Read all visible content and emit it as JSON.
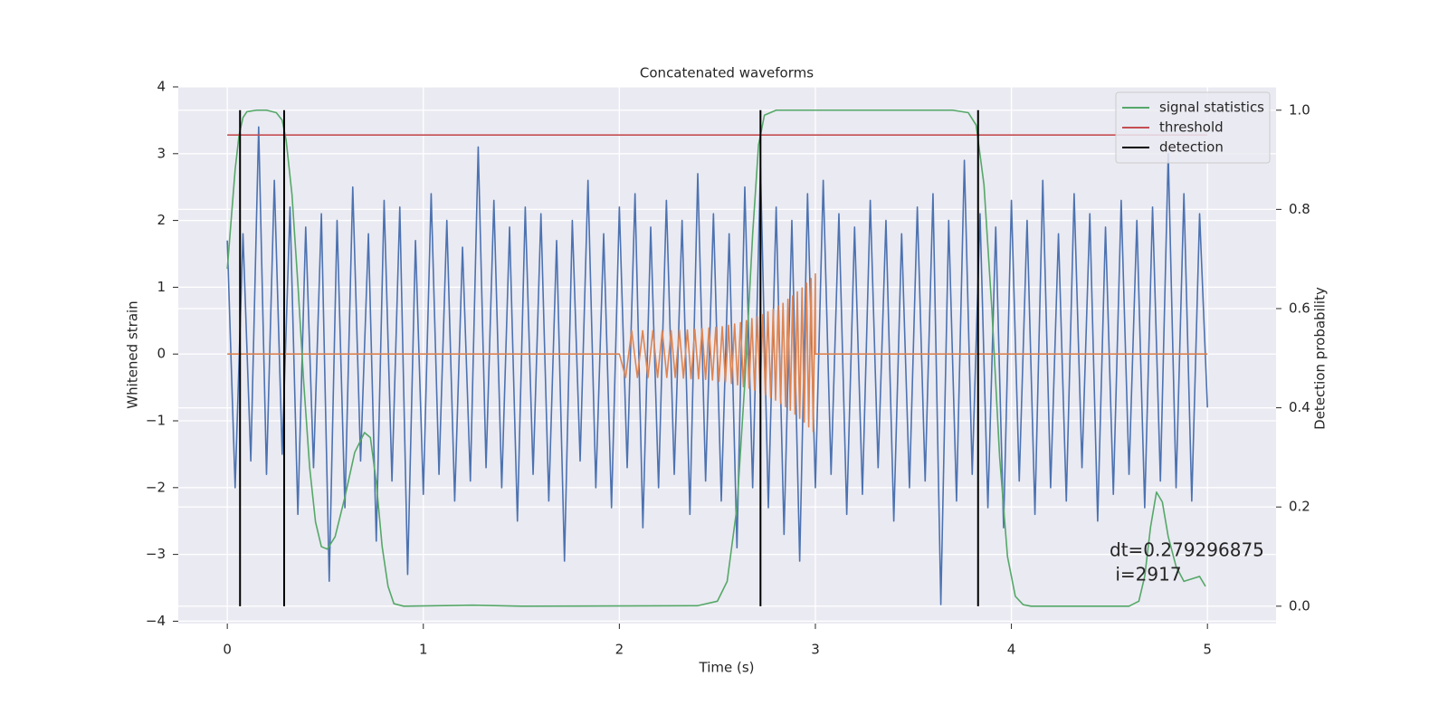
{
  "chart_data": {
    "type": "line",
    "title": "Concatenated waveforms",
    "xlabel": "Time (s)",
    "ylabel": "Whitened strain",
    "y2label": "Detection probability",
    "annotation": [
      "dt=0.279296875",
      " i=2917"
    ],
    "xlim": [
      -0.25,
      5.35
    ],
    "ylim": [
      -4.035,
      4.0
    ],
    "y2lim": [
      -0.035,
      1.047
    ],
    "xticks": [
      0,
      1,
      2,
      3,
      4,
      5
    ],
    "yticks": [
      {
        "value": -4,
        "label": "−4"
      },
      {
        "value": -3,
        "label": "−3"
      },
      {
        "value": -2,
        "label": "−2"
      },
      {
        "value": -1,
        "label": "−1"
      },
      0,
      1,
      2,
      3,
      4
    ],
    "y2ticks": [
      {
        "value": 0,
        "label": "0.0"
      },
      0.2,
      0.4,
      0.6,
      0.8,
      {
        "value": 1,
        "label": "1.0"
      }
    ],
    "grid": true,
    "legend": "upper right",
    "series": [
      {
        "type": "line",
        "color": "#4c72b0",
        "x": [
          0,
          0.04,
          0.08,
          0.12,
          0.16,
          0.2,
          0.24,
          0.28,
          0.32,
          0.36,
          0.4,
          0.44,
          0.48,
          0.52,
          0.56,
          0.6,
          0.64,
          0.68,
          0.72,
          0.76,
          0.8,
          0.84,
          0.88,
          0.92,
          0.96,
          1.0,
          1.04,
          1.08,
          1.12,
          1.16,
          1.2,
          1.24,
          1.28,
          1.32,
          1.36,
          1.4,
          1.44,
          1.48,
          1.52,
          1.56,
          1.6,
          1.64,
          1.68,
          1.72,
          1.76,
          1.8,
          1.84,
          1.88,
          1.92,
          1.96,
          2.0,
          2.04,
          2.08,
          2.12,
          2.16,
          2.2,
          2.24,
          2.28,
          2.32,
          2.36,
          2.4,
          2.44,
          2.48,
          2.52,
          2.56,
          2.6,
          2.64,
          2.68,
          2.72,
          2.76,
          2.8,
          2.84,
          2.88,
          2.92,
          2.96,
          3.0,
          3.04,
          3.08,
          3.12,
          3.16,
          3.2,
          3.24,
          3.28,
          3.32,
          3.36,
          3.4,
          3.44,
          3.48,
          3.52,
          3.56,
          3.6,
          3.64,
          3.68,
          3.72,
          3.76,
          3.8,
          3.84,
          3.88,
          3.92,
          3.96,
          4.0,
          4.04,
          4.08,
          4.12,
          4.16,
          4.2,
          4.24,
          4.28,
          4.32,
          4.36,
          4.4,
          4.44,
          4.48,
          4.52,
          4.56,
          4.6,
          4.64,
          4.68,
          4.72,
          4.76,
          4.8,
          4.84,
          4.88,
          4.92,
          4.96,
          5.0
        ],
        "values": [
          1.7,
          -2.0,
          1.8,
          -1.6,
          3.4,
          -1.8,
          2.6,
          -1.5,
          2.2,
          -2.4,
          1.9,
          -1.7,
          2.1,
          -3.4,
          2.0,
          -2.3,
          2.5,
          -1.6,
          1.8,
          -2.8,
          2.3,
          -1.9,
          2.2,
          -3.3,
          1.7,
          -2.1,
          2.4,
          -1.8,
          2.0,
          -2.2,
          1.6,
          -1.9,
          3.1,
          -1.7,
          2.3,
          -2.0,
          1.9,
          -2.5,
          2.2,
          -1.8,
          2.1,
          -2.2,
          1.7,
          -3.1,
          2.0,
          -1.6,
          2.6,
          -2.0,
          1.8,
          -2.3,
          2.2,
          -1.7,
          2.4,
          -2.6,
          1.9,
          -2.0,
          2.3,
          -1.8,
          2.0,
          -2.4,
          2.7,
          -1.9,
          2.1,
          -2.2,
          1.8,
          -2.9,
          2.5,
          -2.0,
          2.8,
          -2.3,
          2.2,
          -2.7,
          2.0,
          -3.1,
          2.4,
          -2.0,
          2.6,
          -1.8,
          2.1,
          -2.4,
          1.9,
          -2.1,
          2.3,
          -1.7,
          2.0,
          -2.5,
          1.8,
          -2.0,
          2.2,
          -1.9,
          2.4,
          -3.75,
          2.0,
          -2.2,
          2.9,
          -1.8,
          2.1,
          -2.3,
          1.9,
          -2.6,
          2.3,
          -1.9,
          2.0,
          -2.4,
          2.6,
          -2.0,
          1.8,
          -2.2,
          2.4,
          -1.7,
          2.1,
          -2.5,
          1.9,
          -2.1,
          2.3,
          -1.8,
          2.0,
          -2.3,
          2.2,
          -1.9,
          3.0,
          -2.0,
          2.4,
          -2.2,
          2.1,
          -0.8
        ]
      },
      {
        "type": "line",
        "color": "#dd8452",
        "x": [
          0,
          2,
          2.032,
          2.063,
          2.092,
          2.119,
          2.146,
          2.171,
          2.195,
          2.219,
          2.242,
          2.264,
          2.285,
          2.306,
          2.327,
          2.347,
          2.366,
          2.385,
          2.404,
          2.422,
          2.44,
          2.457,
          2.475,
          2.492,
          2.508,
          2.525,
          2.541,
          2.557,
          2.572,
          2.588,
          2.603,
          2.618,
          2.633,
          2.648,
          2.662,
          2.676,
          2.69,
          2.704,
          2.718,
          2.732,
          2.745,
          2.758,
          2.772,
          2.785,
          2.797,
          2.81,
          2.823,
          2.835,
          2.848,
          2.86,
          2.872,
          2.884,
          2.896,
          2.908,
          2.92,
          2.932,
          2.943,
          2.955,
          2.966,
          2.978,
          2.989,
          3.0,
          3.0,
          5
        ],
        "values": [
          0,
          0,
          -0.35,
          0.35,
          -0.35,
          0.35,
          -0.35,
          0.35,
          -0.35,
          0.35,
          -0.35,
          0.35,
          -0.35,
          0.36,
          -0.36,
          0.36,
          -0.37,
          0.37,
          -0.37,
          0.38,
          -0.38,
          0.39,
          -0.39,
          0.4,
          -0.41,
          0.41,
          -0.42,
          0.43,
          -0.44,
          0.45,
          -0.46,
          0.47,
          -0.49,
          0.5,
          -0.51,
          0.53,
          -0.54,
          0.56,
          -0.58,
          0.59,
          -0.61,
          0.63,
          -0.65,
          0.67,
          -0.69,
          0.72,
          -0.74,
          0.76,
          -0.79,
          0.82,
          -0.84,
          0.87,
          -0.9,
          0.93,
          -0.96,
          0.99,
          -1.02,
          1.06,
          -1.09,
          1.13,
          -1.16,
          1.2,
          0,
          0
        ]
      },
      {
        "type": "line",
        "name": "signal statistics",
        "color": "#55a868",
        "axis": "y2",
        "x": [
          0,
          0.02,
          0.04,
          0.06,
          0.08,
          0.1,
          0.15,
          0.2,
          0.25,
          0.28,
          0.3,
          0.33,
          0.36,
          0.39,
          0.42,
          0.45,
          0.48,
          0.51,
          0.55,
          0.6,
          0.65,
          0.7,
          0.73,
          0.76,
          0.79,
          0.82,
          0.85,
          0.9,
          1.25,
          1.5,
          2.4,
          2.5,
          2.55,
          2.6,
          2.64,
          2.68,
          2.71,
          2.74,
          2.8,
          3.7,
          3.78,
          3.82,
          3.86,
          3.9,
          3.94,
          3.98,
          4.02,
          4.06,
          4.1,
          4.6,
          4.65,
          4.68,
          4.71,
          4.74,
          4.77,
          4.8,
          4.84,
          4.88,
          4.92,
          4.96,
          4.99
        ],
        "values": [
          0.68,
          0.78,
          0.88,
          0.95,
          0.985,
          0.997,
          1.0,
          1.0,
          0.995,
          0.98,
          0.94,
          0.83,
          0.65,
          0.45,
          0.28,
          0.17,
          0.12,
          0.115,
          0.14,
          0.22,
          0.31,
          0.35,
          0.34,
          0.25,
          0.12,
          0.04,
          0.005,
          0,
          0.002,
          0,
          0.001,
          0.01,
          0.05,
          0.2,
          0.45,
          0.75,
          0.93,
          0.99,
          1.0,
          1.0,
          0.995,
          0.97,
          0.85,
          0.6,
          0.3,
          0.1,
          0.02,
          0.003,
          0,
          0,
          0.01,
          0.06,
          0.16,
          0.23,
          0.21,
          0.14,
          0.08,
          0.05,
          0.055,
          0.06,
          0.04
        ]
      },
      {
        "type": "line",
        "name": "threshold",
        "color": "#c44e52",
        "axis": "y2",
        "x": [
          0,
          5
        ],
        "values": [
          0.95,
          0.95
        ]
      },
      {
        "type": "vline",
        "name": "detection",
        "color": "#000000",
        "axis": "y2",
        "x": [
          0.065,
          0.29,
          2.72,
          3.83
        ],
        "ymin": 0,
        "ymax": 1
      }
    ]
  }
}
